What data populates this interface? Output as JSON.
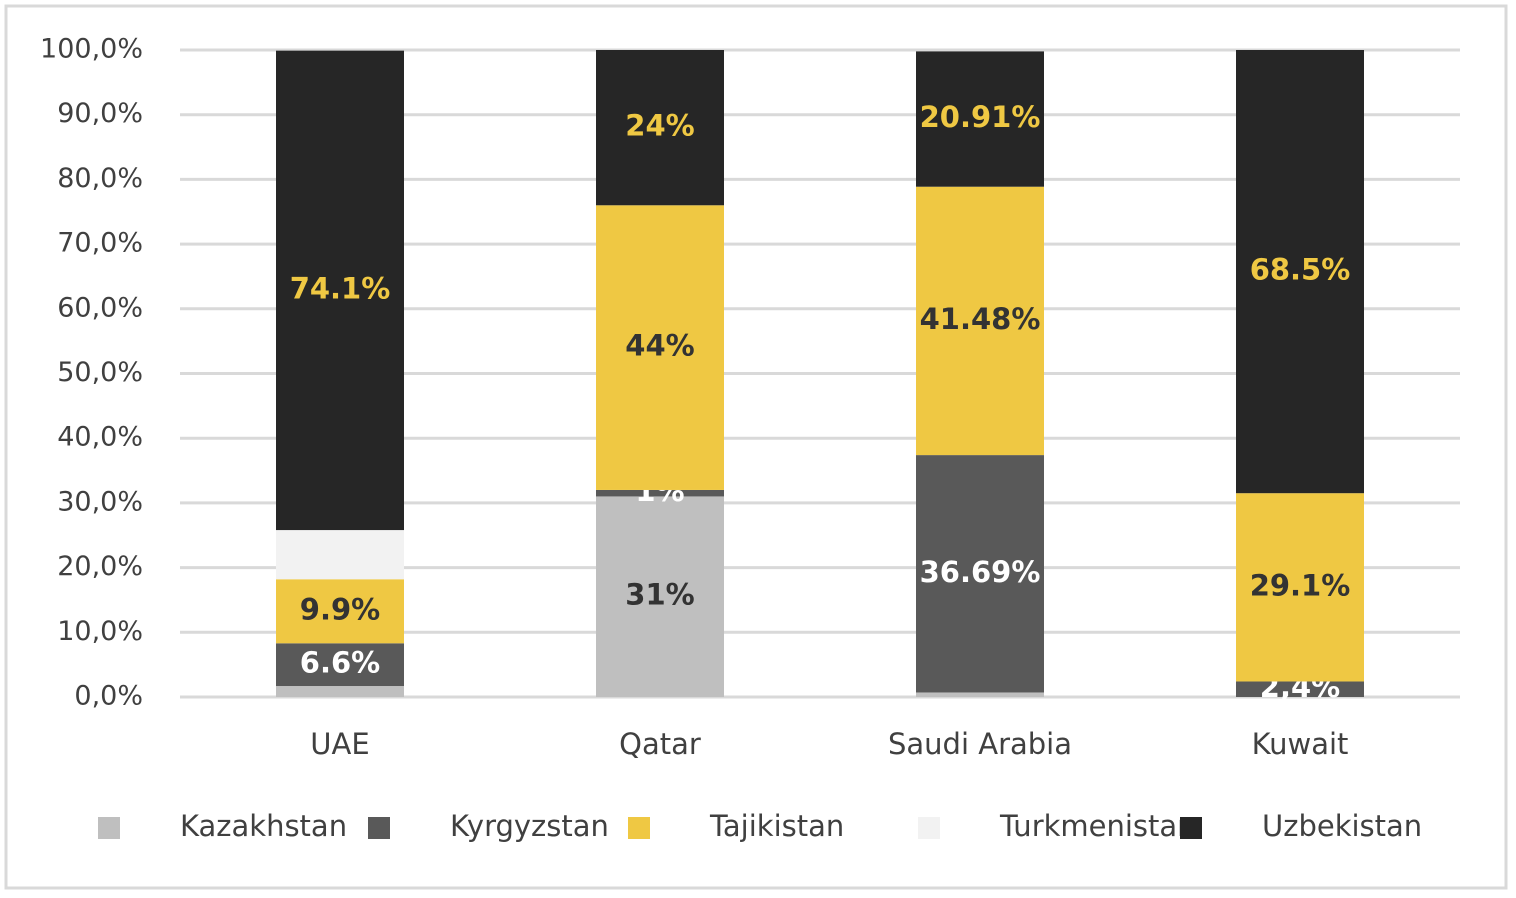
{
  "chart_data": {
    "type": "stacked-bar",
    "categories": [
      "UAE",
      "Qatar",
      "Saudi Arabia",
      "Kuwait"
    ],
    "series": [
      {
        "name": "Kazakhstan",
        "color": "#bfbfbf",
        "label_color": "#333333",
        "values": [
          1.7,
          31,
          0.7,
          0
        ],
        "value_labels": [
          null,
          "31%",
          null,
          null
        ]
      },
      {
        "name": "Kyrgyzstan",
        "color": "#595959",
        "label_color": "#ffffff",
        "values": [
          6.6,
          1,
          36.69,
          2.4
        ],
        "value_labels": [
          "6.6%",
          "1%",
          "36.69%",
          "2,4%"
        ]
      },
      {
        "name": "Tajikistan",
        "color": "#efc843",
        "label_color": "#333333",
        "values": [
          9.9,
          44,
          41.48,
          29.1
        ],
        "value_labels": [
          "9.9%",
          "44%",
          "41.48%",
          "29.1%"
        ]
      },
      {
        "name": "Turkmenistan",
        "color": "#f2f2f2",
        "label_color": "#333333",
        "values": [
          7.6,
          0,
          0,
          0
        ],
        "value_labels": [
          null,
          null,
          null,
          null
        ]
      },
      {
        "name": "Uzbekistan",
        "color": "#262626",
        "label_color": "#efc843",
        "values": [
          74.1,
          24,
          20.91,
          68.5
        ],
        "value_labels": [
          "74.1%",
          "24%",
          "20.91%",
          "68.5%"
        ]
      }
    ],
    "ylim": [
      0,
      100
    ],
    "yticks": [
      {
        "value": 0,
        "label": "0,0%"
      },
      {
        "value": 10,
        "label": "10,0%"
      },
      {
        "value": 20,
        "label": "20,0%"
      },
      {
        "value": 30,
        "label": "30,0%"
      },
      {
        "value": 40,
        "label": "40,0%"
      },
      {
        "value": 50,
        "label": "50,0%"
      },
      {
        "value": 60,
        "label": "60,0%"
      },
      {
        "value": 70,
        "label": "70,0%"
      },
      {
        "value": 80,
        "label": "80,0%"
      },
      {
        "value": 90,
        "label": "90,0%"
      },
      {
        "value": 100,
        "label": "100,0%"
      }
    ],
    "grid": true,
    "legend": "bottom"
  }
}
